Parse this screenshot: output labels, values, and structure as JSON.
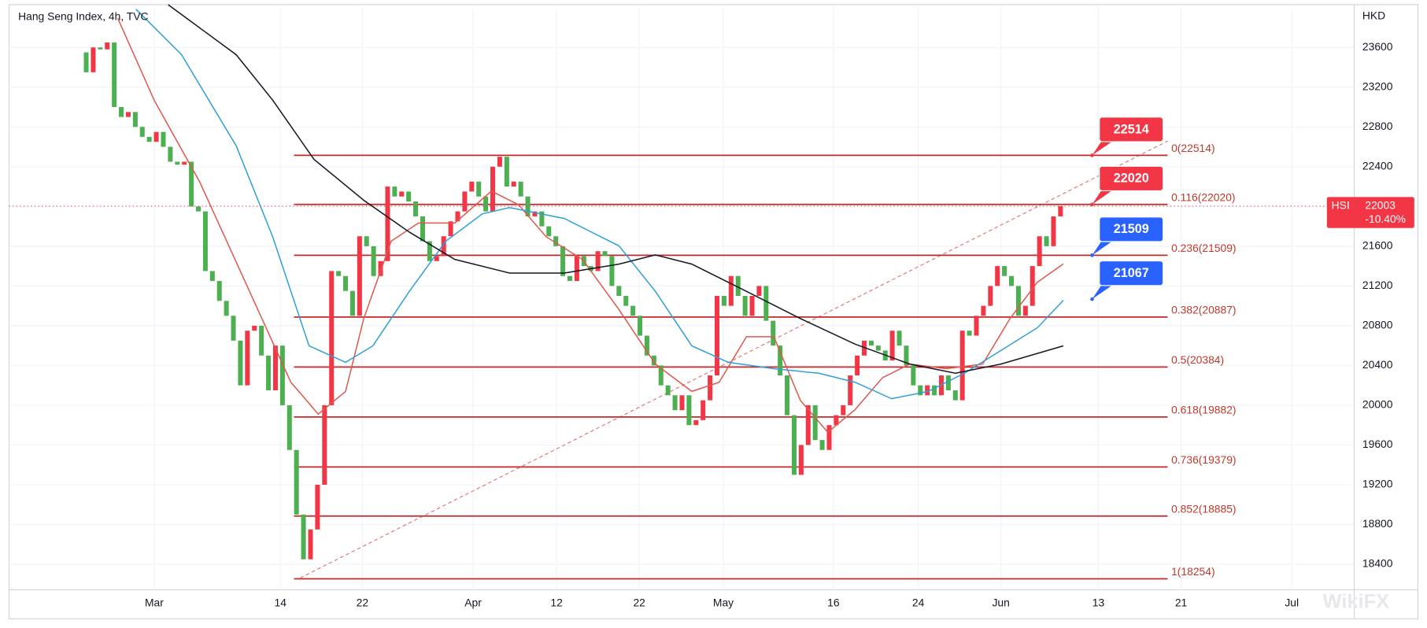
{
  "chart_data": {
    "type": "candlestick",
    "title": "Hang Seng Index, 4h, TVC",
    "y_axis_unit": "HKD",
    "ylim": [
      18144,
      24003
    ],
    "yticks": [
      18400,
      18800,
      19200,
      19600,
      20000,
      20400,
      20800,
      21200,
      21600,
      22000,
      22400,
      22800,
      23200,
      23600
    ],
    "xlim": [
      -11,
      180.9
    ],
    "xticks": [
      {
        "value": 9.7,
        "label": "Mar"
      },
      {
        "value": 27.7,
        "label": "14"
      },
      {
        "value": 39.4,
        "label": "22"
      },
      {
        "value": 55.2,
        "label": "Apr"
      },
      {
        "value": 67.1,
        "label": "12"
      },
      {
        "value": 78.9,
        "label": "22"
      },
      {
        "value": 90.9,
        "label": "May"
      },
      {
        "value": 106.6,
        "label": "16"
      },
      {
        "value": 118.7,
        "label": "24"
      },
      {
        "value": 130.5,
        "label": "Jun"
      },
      {
        "value": 144.4,
        "label": "13"
      },
      {
        "value": 156.2,
        "label": "21"
      },
      {
        "value": 172,
        "label": "Jul"
      }
    ],
    "grid": true,
    "up_color": "#f23645",
    "down_color": "#4caf50",
    "candles": {
      "open": [
        23550,
        23350,
        23600,
        23580,
        23650,
        23000,
        22900,
        22950,
        22800,
        22700,
        22650,
        22750,
        22600,
        22450,
        22420,
        22450,
        22000,
        21950,
        21350,
        21250,
        21050,
        20900,
        20650,
        20200,
        20750,
        20800,
        20500,
        20150,
        20600,
        20000,
        19550,
        18900,
        18450,
        18750,
        19200,
        20000,
        21350,
        21300,
        21150,
        20900,
        21700,
        21600,
        21300,
        21450,
        22200,
        22100,
        22150,
        22050,
        21900,
        21650,
        21450,
        21500,
        21700,
        21850,
        21950,
        22150,
        22250,
        22100,
        21950,
        22400,
        22500,
        22200,
        22250,
        22100,
        21900,
        21950,
        21800,
        21700,
        21600,
        21300,
        21250,
        21500,
        21400,
        21350,
        21550,
        21500,
        21200,
        21100,
        21000,
        20900,
        20700,
        20500,
        20400,
        20200,
        20100,
        19950,
        20100,
        19800,
        19850,
        20050,
        20300,
        21100,
        21000,
        21300,
        21100,
        20900,
        21100,
        21200,
        20850,
        20600,
        20300,
        19900,
        19300,
        19600,
        20000,
        19650,
        19550,
        19800,
        19900,
        20000,
        20300,
        20500,
        20650,
        20600,
        20550,
        20450,
        20750,
        20600,
        20400,
        20200,
        20100,
        20200,
        20100,
        20300,
        20150,
        20050,
        20750,
        20700,
        20900,
        21000,
        21200,
        21400,
        21300,
        21200,
        20900,
        21000,
        21400,
        21700,
        21600,
        21900
      ],
      "close": [
        23350,
        23600,
        23580,
        23650,
        23000,
        22900,
        22950,
        22800,
        22700,
        22650,
        22750,
        22600,
        22450,
        22420,
        22450,
        22000,
        21950,
        21350,
        21250,
        21050,
        20900,
        20650,
        20200,
        20750,
        20800,
        20500,
        20150,
        20600,
        20000,
        19550,
        18900,
        18450,
        18750,
        19200,
        20000,
        21350,
        21300,
        21150,
        20900,
        21700,
        21600,
        21300,
        21450,
        22200,
        22100,
        22150,
        22050,
        21900,
        21650,
        21450,
        21500,
        21700,
        21850,
        21950,
        22150,
        22250,
        22100,
        21950,
        22400,
        22500,
        22200,
        22250,
        22100,
        21900,
        21950,
        21800,
        21700,
        21600,
        21300,
        21250,
        21500,
        21400,
        21350,
        21550,
        21500,
        21200,
        21100,
        21000,
        20900,
        20700,
        20500,
        20400,
        20200,
        20100,
        19950,
        20100,
        19800,
        19850,
        20050,
        20300,
        21100,
        21000,
        21300,
        21100,
        20900,
        21100,
        21200,
        20850,
        20600,
        20300,
        19900,
        19300,
        19600,
        20000,
        19650,
        19550,
        19800,
        19900,
        20000,
        20300,
        20500,
        20650,
        20600,
        20550,
        20450,
        20750,
        20600,
        20400,
        20200,
        20100,
        20200,
        20100,
        20300,
        20150,
        20050,
        20750,
        20700,
        20900,
        21000,
        21200,
        21400,
        21300,
        21200,
        20900,
        21000,
        21400,
        21700,
        21600,
        21900,
        22003
      ]
    },
    "series": [
      {
        "color": "#e0574a",
        "x": [
          4.5,
          9.7,
          16.2,
          22.7,
          29.2,
          33.1,
          37.0,
          39.6,
          43.5,
          47.4,
          52.6,
          57.8,
          61.7,
          65.6,
          70.8,
          76.0,
          81.2,
          86.4,
          90.3,
          94.2,
          98.1,
          101.9,
          105.8,
          109.7,
          113.6,
          117.5,
          122.7,
          127.9,
          131.8,
          135.7,
          139.4
        ],
        "values": [
          23893,
          23069,
          22245,
          21238,
          20231,
          19911,
          20139,
          20872,
          21650,
          21833,
          21833,
          22154,
          22016,
          21696,
          21467,
          20963,
          20414,
          20139,
          20231,
          20689,
          20689,
          20048,
          19728,
          19957,
          20277,
          20414,
          20368,
          20414,
          20872,
          21238,
          21421
        ]
      },
      {
        "color": "#2f9fd8",
        "x": [
          7.1,
          13.6,
          21.4,
          26.6,
          31.8,
          37.0,
          40.9,
          46.1,
          51.3,
          56.5,
          60.4,
          68.2,
          76.0,
          81.2,
          86.4,
          91.6,
          98.1,
          104.5,
          109.7,
          114.9,
          120.1,
          125.3,
          130.5,
          135.7,
          139.4
        ],
        "values": [
          23985,
          23527,
          22611,
          21696,
          20597,
          20432,
          20597,
          21146,
          21650,
          21925,
          21989,
          21879,
          21604,
          21146,
          20597,
          20432,
          20368,
          20322,
          20231,
          20066,
          20139,
          20322,
          20551,
          20780,
          21055
        ]
      },
      {
        "color": "#131722",
        "x": [
          11.7,
          21.4,
          26.6,
          32.5,
          39.6,
          46.1,
          52.6,
          60.4,
          68.2,
          76.0,
          81.2,
          86.4,
          94.2,
          101.9,
          109.7,
          117.5,
          124.0,
          130.5,
          139.4
        ],
        "values": [
          24030,
          23527,
          23070,
          22474,
          22062,
          21742,
          21467,
          21330,
          21330,
          21420,
          21513,
          21420,
          21146,
          20872,
          20615,
          20414,
          20322,
          20414,
          20597
        ]
      }
    ],
    "fib_levels": [
      {
        "value": 22514,
        "label": "0(22514)"
      },
      {
        "value": 22020,
        "label": "0.116(22020)"
      },
      {
        "value": 21509,
        "label": "0.236(21509)"
      },
      {
        "value": 20887,
        "label": "0.382(20887)"
      },
      {
        "value": 20384,
        "label": "0.5(20384)"
      },
      {
        "value": 19882,
        "label": "0.618(19882)"
      },
      {
        "value": 19379,
        "label": "0.736(19379)"
      },
      {
        "value": 18885,
        "label": "0.852(18885)"
      },
      {
        "value": 18254,
        "label": "1(18254)"
      }
    ],
    "fib_color": "#c62828",
    "callouts": [
      {
        "value": 22514,
        "color": "#f23645"
      },
      {
        "value": 22020,
        "color": "#f23645"
      },
      {
        "value": 21509,
        "color": "#2962ff"
      },
      {
        "value": 21067,
        "color": "#2962ff"
      }
    ],
    "last_price": {
      "symbol": "HSI",
      "value": 22003,
      "change": "-10.40%",
      "color": "#f23645"
    },
    "watermark": "WikiFX"
  }
}
